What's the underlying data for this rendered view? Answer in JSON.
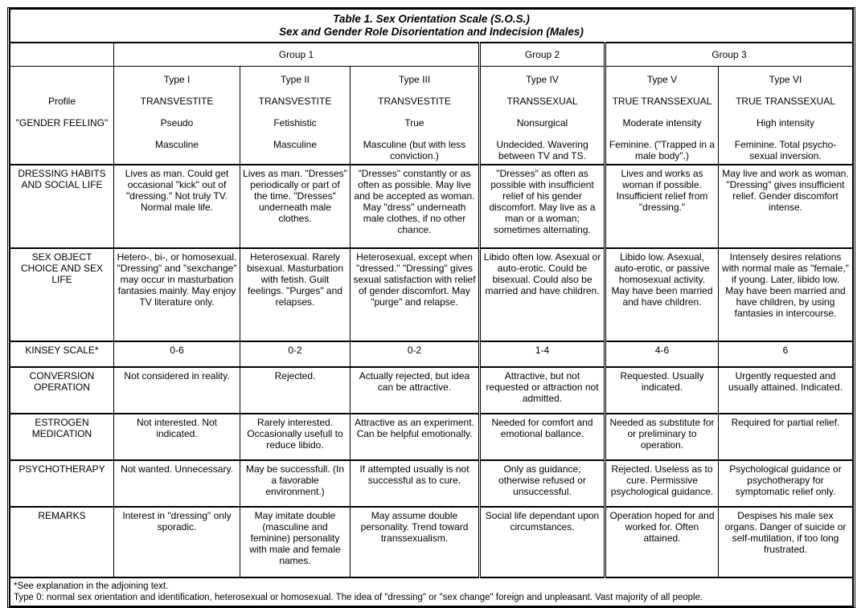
{
  "title": {
    "line1": "Table 1. Sex Orientation Scale (S.O.S.)",
    "line2": "Sex and Gender Role Disorientation and Indecision (Males)"
  },
  "groups": [
    "Group 1",
    "Group 2",
    "Group 3"
  ],
  "profile": {
    "labels": [
      "Profile",
      "\"GENDER FEELING\""
    ],
    "types": [
      {
        "type": "Type I",
        "name": "TRANSVESTITE",
        "kind": "Pseudo",
        "feeling": "Masculine"
      },
      {
        "type": "Type II",
        "name": "TRANSVESTITE",
        "kind": "Fetishistic",
        "feeling": "Masculine"
      },
      {
        "type": "Type III",
        "name": "TRANSVESTITE",
        "kind": "True",
        "feeling": "Masculine (but with less conviction.)"
      },
      {
        "type": "Type IV",
        "name": "TRANSSEXUAL",
        "kind": "Nonsurgical",
        "feeling": "Undecided. Wavering between TV and TS."
      },
      {
        "type": "Type V",
        "name": "TRUE TRANSSEXUAL",
        "kind": "Moderate intensity",
        "feeling": "Feminine. (\"Trapped in a male body\".)"
      },
      {
        "type": "Type VI",
        "name": "TRUE TRANSSEXUAL",
        "kind": "High intensity",
        "feeling": "Feminine. Total psycho-sexual inversion."
      }
    ]
  },
  "rows": [
    {
      "label": "DRESSING HABITS AND SOCIAL LIFE",
      "cells": [
        "Lives as man. Could get occasional \"kick\" out of \"dressing.\" Not truly TV. Normal male life.",
        "Lives as man. \"Dresses\" periodically or part of the time. \"Dresses\" underneath male clothes.",
        "\"Dresses\" constantly or as often as possible. May live and be accepted as woman. May \"dress\" underneath male clothes, if no other chance.",
        "\"Dresses\" as often as possible with insufficient relief of his gender discomfort. May live as a man or a woman; sometimes alternating.",
        "Lives and works as woman if possible. Insufficient relief from \"dressing.\"",
        "May live and work as woman. \"Dressing\" gives insufficient relief. Gender discomfort intense."
      ]
    },
    {
      "label": "SEX OBJECT CHOICE AND SEX LIFE",
      "cells": [
        "Hetero-, bi-, or homosexual. \"Dressing\" and \"sexchange\" may occur in masturbation fantasies mainly. May enjoy TV literature only.",
        "Heterosexual. Rarely bisexual. Masturbation with fetish. Guilt feelings. \"Purges\" and relapses.",
        "Heterosexual, except when \"dressed.\" \"Dressing\" gives sexual satisfaction with relief of gender discomfort. May \"purge\" and relapse.",
        "Libido often low. Asexual or auto-erotic. Could be bisexual. Could also be married and have children.",
        "Libido low. Asexual, auto-erotic, or passive homosexual activity. May have been married and have children.",
        "Intensely desires relations with normal male as \"female,\" if young. Later, libido low. May have been married and have children, by using fantasies in intercourse."
      ]
    },
    {
      "label": "KINSEY SCALE*",
      "cells": [
        "0-6",
        "0-2",
        "0-2",
        "1-4",
        "4-6",
        "6"
      ]
    },
    {
      "label": "CONVERSION OPERATION",
      "cells": [
        "Not considered in reality.",
        "Rejected.",
        "Actually rejected, but idea can be attractive.",
        "Attractive, but not requested or attraction not admitted.",
        "Requested. Usually indicated.",
        "Urgently requested and usually attained. Indicated."
      ]
    },
    {
      "label": "ESTROGEN MEDICATION",
      "cells": [
        "Not interested. Not indicated.",
        "Rarely interested. Occasionally usefull to reduce libido.",
        "Attractive as an experiment. Can be helpful emotionally.",
        "Needed for comfort and emotional ballance.",
        "Needed as substitute for or preliminary to operation.",
        "Required for partial relief."
      ]
    },
    {
      "label": "PSYCHOTHERAPY",
      "cells": [
        "Not wanted. Unnecessary.",
        "May be successfull. (In a favorable environment.)",
        "If attempted usually is not successful as to cure.",
        "Only as guidance; otherwise refused or unsuccessful.",
        "Rejected. Useless as to cure. Permissive psychological guidance.",
        "Psychological guidance or psychotherapy for symptomatic relief only."
      ]
    },
    {
      "label": "REMARKS",
      "cells": [
        "Interest in \"dressing\" only sporadic.",
        "May imitate double (masculine and feminine) personality with male and female names.",
        "May assume double personality. Trend toward transsexualism.",
        "Social life dependant upon circumstances.",
        "Operation hoped for and worked for. Often attained.",
        "Despises his male sex organs. Danger of suicide or self-mutilation, if too long frustrated."
      ]
    }
  ],
  "footnotes": [
    "*See explanation in the adjoining text.",
    "Type 0: normal sex orientation and identification, heterosexual or homosexual. The idea of \"dressing\" or \"sex change\" foreign and unpleasant. Vast majority of all people."
  ]
}
